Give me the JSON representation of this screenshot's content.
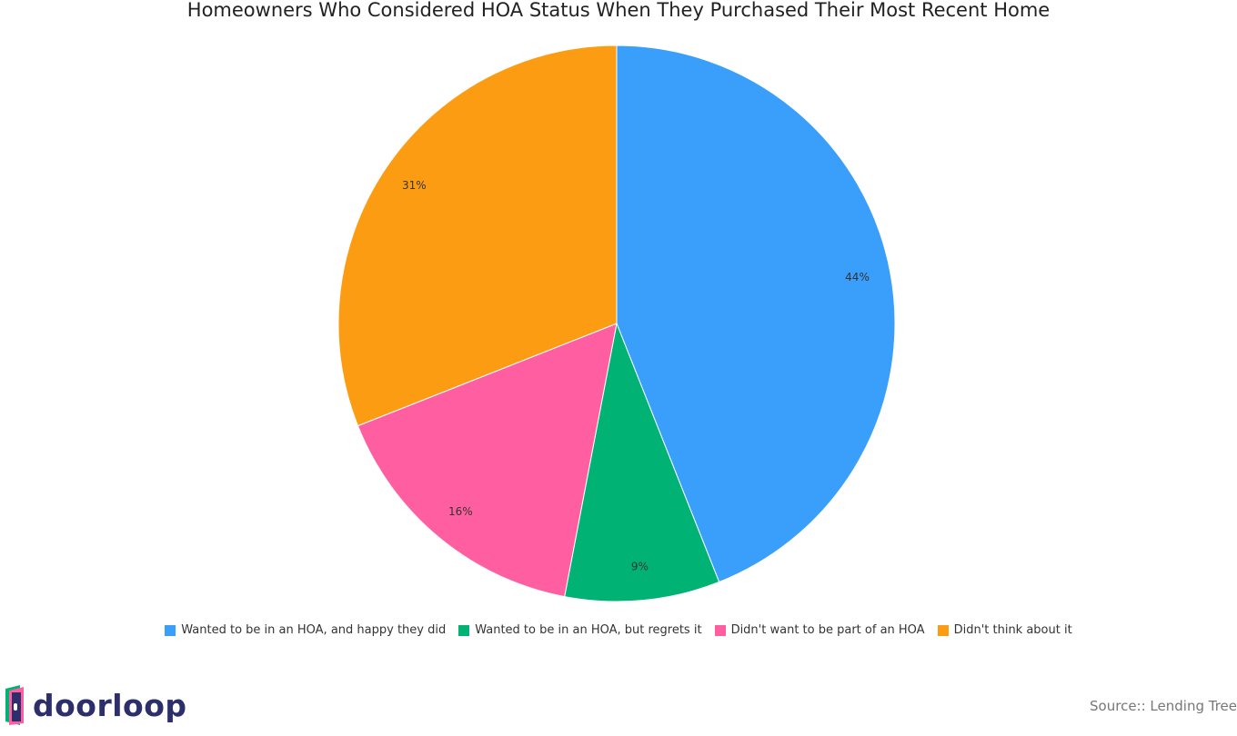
{
  "chart_data": {
    "type": "pie",
    "title": "Homeowners Who Considered HOA Status When They Purchased Their Most Recent Home",
    "slices": [
      {
        "label": "Wanted to be in an HOA, and happy they did",
        "value": 44,
        "display": "44%",
        "color": "#3a9ffb"
      },
      {
        "label": "Wanted to be in an HOA, but regrets it",
        "value": 9,
        "display": "9%",
        "color": "#00b374"
      },
      {
        "label": "Didn't want to be part of an HOA",
        "value": 16,
        "display": "16%",
        "color": "#ff5fa0"
      },
      {
        "label": "Didn't think about it",
        "value": 31,
        "display": "31%",
        "color": "#fb9c13"
      }
    ],
    "legend_placement": "bottom-center"
  },
  "branding": {
    "logo_text": "doorloop",
    "logo_icon": "door-icon"
  },
  "source_text": "Source:: Lending Tree"
}
